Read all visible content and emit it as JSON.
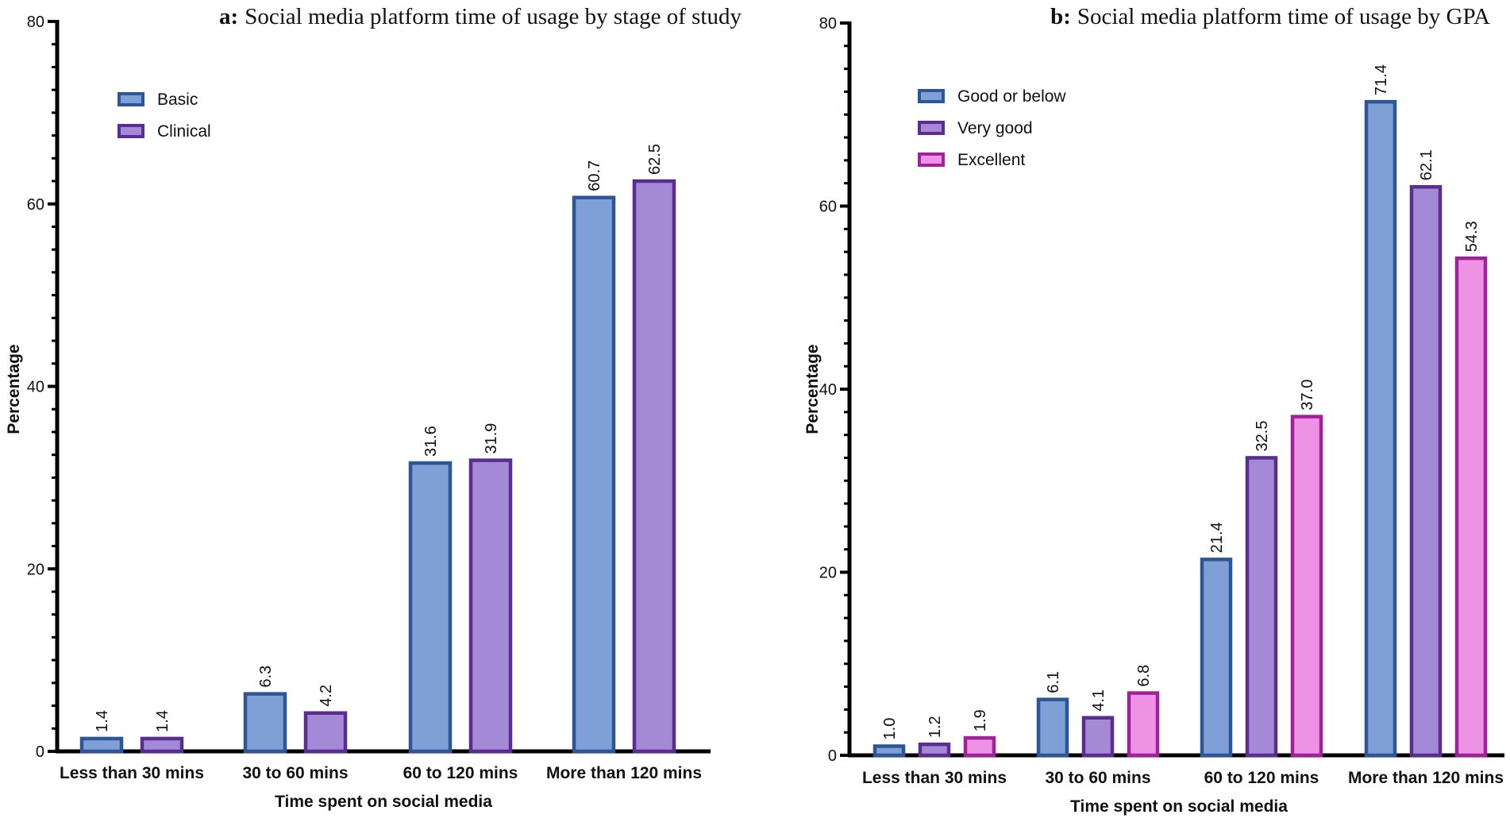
{
  "chart_data": [
    {
      "type": "bar",
      "panel_letter": "a:",
      "title": "Social media platform time of usage by stage of study",
      "xlabel": "Time spent on social media",
      "ylabel": "Percentage",
      "ylim": [
        0,
        80
      ],
      "yticks": [
        "0",
        "20",
        "40",
        "60",
        "80"
      ],
      "categories": [
        "Less than 30 mins",
        "30 to 60 mins",
        "60 to 120 mins",
        "More than 120 mins"
      ],
      "legend_position": "top-left",
      "series": [
        {
          "name": "Basic",
          "values": [
            1.4,
            6.3,
            31.6,
            60.7
          ],
          "labels": [
            "1.4",
            "6.3",
            "31.6",
            "60.7"
          ],
          "fill": "#7fa0d6",
          "stroke": "#2e5596"
        },
        {
          "name": "Clinical",
          "values": [
            1.4,
            4.2,
            31.9,
            62.5
          ],
          "labels": [
            "1.4",
            "4.2",
            "31.9",
            "62.5"
          ],
          "fill": "#a48ad6",
          "stroke": "#5a2d90"
        }
      ]
    },
    {
      "type": "bar",
      "panel_letter": "b:",
      "title": "Social media platform time of usage by GPA",
      "xlabel": "Time spent on social media",
      "ylabel": "Percentage",
      "ylim": [
        0,
        80
      ],
      "yticks": [
        "0",
        "20",
        "40",
        "60",
        "80"
      ],
      "categories": [
        "Less than 30 mins",
        "30 to 60 mins",
        "60 to 120 mins",
        "More than 120 mins"
      ],
      "legend_position": "top-left",
      "series": [
        {
          "name": "Good or below",
          "values": [
            1.0,
            6.1,
            21.4,
            71.4
          ],
          "labels": [
            "1.0",
            "6.1",
            "21.4",
            "71.4"
          ],
          "fill": "#7fa0d6",
          "stroke": "#2e5596"
        },
        {
          "name": "Very good",
          "values": [
            1.2,
            4.1,
            32.5,
            62.1
          ],
          "labels": [
            "1.2",
            "4.1",
            "32.5",
            "62.1"
          ],
          "fill": "#a48ad6",
          "stroke": "#5a2d90"
        },
        {
          "name": "Excellent",
          "values": [
            1.9,
            6.8,
            37.0,
            54.3
          ],
          "labels": [
            "1.9",
            "6.8",
            "37.0",
            "54.3"
          ],
          "fill": "#ee92e6",
          "stroke": "#a0229a"
        }
      ]
    }
  ]
}
